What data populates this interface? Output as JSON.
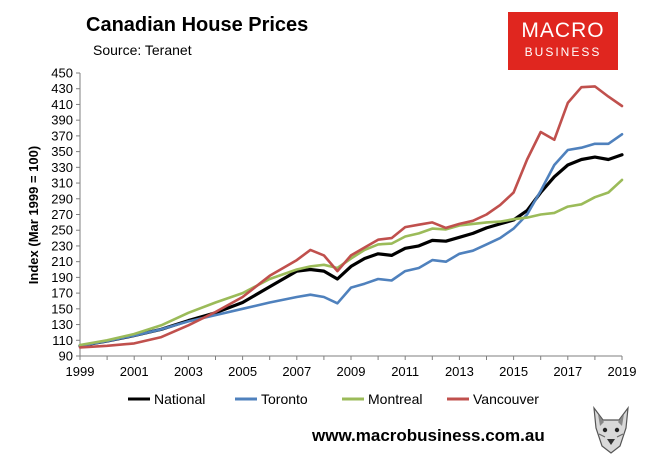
{
  "header": {
    "title": "Canadian House Prices",
    "source": "Source: Teranet",
    "logo_line1": "MACRO",
    "logo_line2": "BUSINESS",
    "website": "www.macrobusiness.com.au"
  },
  "chart_data": {
    "type": "line",
    "title": "Canadian House Prices",
    "subtitle": "Source: Teranet",
    "xlabel": "",
    "ylabel": "Index (Mar 1999 = 100)",
    "xlim": [
      1999,
      2019
    ],
    "ylim": [
      90,
      450
    ],
    "x_ticks": [
      "1999",
      "2001",
      "2003",
      "2005",
      "2007",
      "2009",
      "2011",
      "2013",
      "2015",
      "2017",
      "2019"
    ],
    "y_ticks": [
      90,
      110,
      130,
      150,
      170,
      190,
      210,
      230,
      250,
      270,
      290,
      310,
      330,
      350,
      370,
      390,
      410,
      430,
      450
    ],
    "grid": false,
    "legend": "bottom",
    "x": [
      1999.0,
      2000.0,
      2001.0,
      2002.0,
      2003.0,
      2004.0,
      2005.0,
      2006.0,
      2007.0,
      2007.5,
      2008.0,
      2008.5,
      2009.0,
      2009.5,
      2010.0,
      2010.5,
      2011.0,
      2011.5,
      2012.0,
      2012.5,
      2013.0,
      2013.5,
      2014.0,
      2014.5,
      2015.0,
      2015.5,
      2016.0,
      2016.5,
      2017.0,
      2017.5,
      2018.0,
      2018.5,
      2019.0
    ],
    "series": [
      {
        "name": "National",
        "color": "#000000",
        "values": [
          103,
          109,
          116,
          124,
          135,
          145,
          158,
          178,
          198,
          200,
          198,
          188,
          204,
          214,
          220,
          218,
          227,
          230,
          237,
          236,
          241,
          246,
          253,
          258,
          263,
          275,
          298,
          318,
          333,
          340,
          343,
          340,
          346
        ]
      },
      {
        "name": "Toronto",
        "color": "#4f81bd",
        "values": [
          103,
          109,
          116,
          124,
          134,
          142,
          150,
          158,
          165,
          168,
          165,
          157,
          177,
          182,
          188,
          186,
          198,
          202,
          212,
          210,
          220,
          224,
          232,
          240,
          252,
          270,
          300,
          333,
          352,
          355,
          360,
          360,
          372
        ]
      },
      {
        "name": "Montreal",
        "color": "#9bbb59",
        "values": [
          104,
          110,
          118,
          129,
          145,
          158,
          170,
          188,
          200,
          204,
          206,
          202,
          214,
          225,
          232,
          233,
          242,
          246,
          252,
          251,
          256,
          258,
          260,
          261,
          264,
          266,
          270,
          272,
          280,
          283,
          292,
          298,
          314
        ]
      },
      {
        "name": "Vancouver",
        "color": "#c0504d",
        "values": [
          101,
          103,
          106,
          114,
          129,
          146,
          165,
          192,
          212,
          225,
          218,
          198,
          218,
          228,
          238,
          240,
          254,
          257,
          260,
          253,
          258,
          262,
          270,
          282,
          298,
          340,
          375,
          365,
          412,
          432,
          433,
          420,
          408
        ]
      }
    ]
  }
}
